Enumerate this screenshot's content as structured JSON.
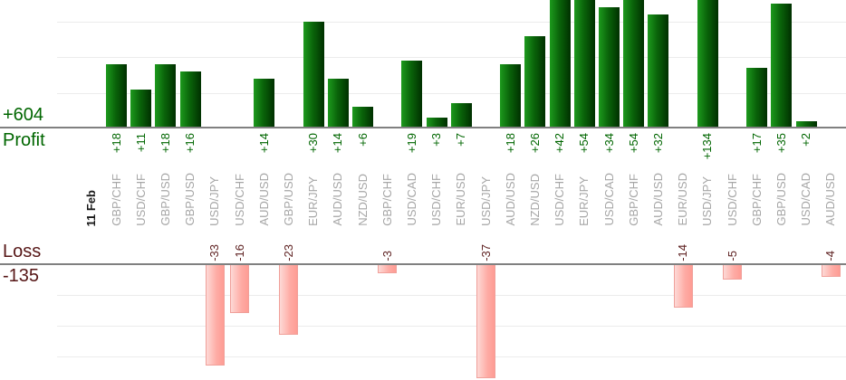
{
  "summary": {
    "profit_total": "+604",
    "profit_axis_label": "Profit",
    "loss_axis_label": "Loss",
    "loss_total": "-135"
  },
  "date_label": "11 Feb",
  "colors": {
    "profit_text": "#006600",
    "loss_text": "#5e2121",
    "pair_text": "#a6a6a6",
    "profit_bar_dark": "#003000",
    "profit_bar_light": "#1d9a1d",
    "loss_bar_fill": "#fe9c94",
    "loss_bar_border": "#f0a09a",
    "axis": "#808080",
    "gridline": "#ececec"
  },
  "chart_data": {
    "type": "bar",
    "title": "",
    "xlabel": "",
    "ylabel_top_section": "Profit",
    "ylabel_bottom_section": "Loss",
    "profit_total": 604,
    "loss_total": -135,
    "date": "11 Feb",
    "gridline_step": 10,
    "legend": "none",
    "grid": "on",
    "categories": [
      "GBP/CHF",
      "USD/CHF",
      "GBP/USD",
      "GBP/USD",
      "USD/JPY",
      "USD/CHF",
      "AUD/USD",
      "GBP/USD",
      "EUR/JPY",
      "AUD/USD",
      "NZD/USD",
      "GBP/CHF",
      "USD/CAD",
      "USD/CHF",
      "EUR/USD",
      "USD/JPY",
      "AUD/USD",
      "NZD/USD",
      "USD/CHF",
      "EUR/JPY",
      "USD/CAD",
      "GBP/CHF",
      "AUD/USD",
      "EUR/USD",
      "USD/JPY",
      "USD/CHF",
      "GBP/CHF",
      "GBP/USD",
      "USD/CAD",
      "AUD/USD"
    ],
    "values": [
      18,
      11,
      18,
      16,
      -33,
      -16,
      14,
      -23,
      30,
      14,
      6,
      -3,
      19,
      3,
      7,
      -37,
      18,
      26,
      42,
      54,
      34,
      54,
      32,
      -14,
      134,
      -5,
      17,
      35,
      2,
      -4
    ]
  }
}
